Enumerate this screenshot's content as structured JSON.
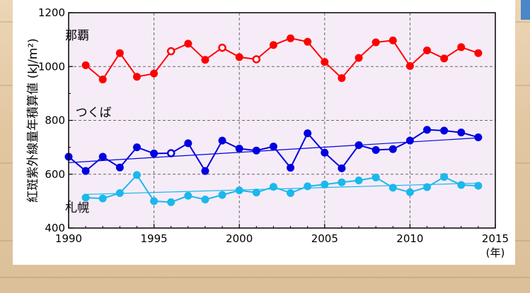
{
  "chart_data": {
    "type": "line",
    "title": "",
    "ylabel": "紅斑紫外線量年積算値 (kJ/m²)",
    "xlabel": "",
    "x_unit": "(年)",
    "xlim": [
      1990,
      2015
    ],
    "ylim": [
      400,
      1200
    ],
    "x_ticks": [
      "1990",
      "1995",
      "2000",
      "2005",
      "2010",
      "2015"
    ],
    "y_ticks": [
      "400",
      "600",
      "800",
      "1000",
      "1200"
    ],
    "grid": true,
    "background": "#f6ecf8",
    "series": [
      {
        "name": "那覇",
        "color": "#ff0000",
        "points": [
          {
            "x": 1991,
            "y": 1005
          },
          {
            "x": 1992,
            "y": 952
          },
          {
            "x": 1993,
            "y": 1050
          },
          {
            "x": 1994,
            "y": 962
          },
          {
            "x": 1995,
            "y": 974
          },
          {
            "x": 1996,
            "y": 1057,
            "open": true
          },
          {
            "x": 1997,
            "y": 1085
          },
          {
            "x": 1998,
            "y": 1025
          },
          {
            "x": 1999,
            "y": 1070,
            "open": true
          },
          {
            "x": 2000,
            "y": 1035
          },
          {
            "x": 2001,
            "y": 1027,
            "open": true
          },
          {
            "x": 2002,
            "y": 1080
          },
          {
            "x": 2003,
            "y": 1105
          },
          {
            "x": 2004,
            "y": 1092
          },
          {
            "x": 2005,
            "y": 1017
          },
          {
            "x": 2006,
            "y": 957
          },
          {
            "x": 2007,
            "y": 1032
          },
          {
            "x": 2008,
            "y": 1090
          },
          {
            "x": 2009,
            "y": 1097
          },
          {
            "x": 2010,
            "y": 1002
          },
          {
            "x": 2011,
            "y": 1060
          },
          {
            "x": 2012,
            "y": 1030
          },
          {
            "x": 2013,
            "y": 1072
          },
          {
            "x": 2014,
            "y": 1050
          }
        ],
        "trend": null
      },
      {
        "name": "つくば",
        "color": "#0000e0",
        "points": [
          {
            "x": 1990,
            "y": 665
          },
          {
            "x": 1991,
            "y": 612
          },
          {
            "x": 1992,
            "y": 665
          },
          {
            "x": 1993,
            "y": 625
          },
          {
            "x": 1994,
            "y": 700
          },
          {
            "x": 1995,
            "y": 677
          },
          {
            "x": 1996,
            "y": 678,
            "open": true
          },
          {
            "x": 1997,
            "y": 715
          },
          {
            "x": 1998,
            "y": 612
          },
          {
            "x": 1999,
            "y": 725
          },
          {
            "x": 2000,
            "y": 695
          },
          {
            "x": 2001,
            "y": 688
          },
          {
            "x": 2002,
            "y": 703
          },
          {
            "x": 2003,
            "y": 624
          },
          {
            "x": 2004,
            "y": 752
          },
          {
            "x": 2005,
            "y": 680
          },
          {
            "x": 2006,
            "y": 622
          },
          {
            "x": 2007,
            "y": 708
          },
          {
            "x": 2008,
            "y": 690
          },
          {
            "x": 2009,
            "y": 693
          },
          {
            "x": 2010,
            "y": 725
          },
          {
            "x": 2011,
            "y": 765
          },
          {
            "x": 2012,
            "y": 762
          },
          {
            "x": 2013,
            "y": 755
          },
          {
            "x": 2014,
            "y": 737
          }
        ],
        "trend": [
          {
            "x": 1990,
            "y": 643
          },
          {
            "x": 2014,
            "y": 735
          }
        ]
      },
      {
        "name": "札幌",
        "color": "#1ab8ec",
        "points": [
          {
            "x": 1991,
            "y": 513
          },
          {
            "x": 1992,
            "y": 510
          },
          {
            "x": 1993,
            "y": 530
          },
          {
            "x": 1994,
            "y": 597
          },
          {
            "x": 1995,
            "y": 500
          },
          {
            "x": 1996,
            "y": 496
          },
          {
            "x": 1997,
            "y": 520
          },
          {
            "x": 1998,
            "y": 506
          },
          {
            "x": 1999,
            "y": 523
          },
          {
            "x": 2000,
            "y": 540
          },
          {
            "x": 2001,
            "y": 532
          },
          {
            "x": 2002,
            "y": 553
          },
          {
            "x": 2003,
            "y": 530
          },
          {
            "x": 2004,
            "y": 555
          },
          {
            "x": 2005,
            "y": 562
          },
          {
            "x": 2006,
            "y": 570
          },
          {
            "x": 2007,
            "y": 577
          },
          {
            "x": 2008,
            "y": 588
          },
          {
            "x": 2009,
            "y": 550
          },
          {
            "x": 2010,
            "y": 533
          },
          {
            "x": 2011,
            "y": 552
          },
          {
            "x": 2012,
            "y": 590
          },
          {
            "x": 2013,
            "y": 560
          },
          {
            "x": 2014,
            "y": 557
          }
        ],
        "trend": [
          {
            "x": 1991,
            "y": 525
          },
          {
            "x": 2014,
            "y": 567
          }
        ]
      }
    ]
  }
}
